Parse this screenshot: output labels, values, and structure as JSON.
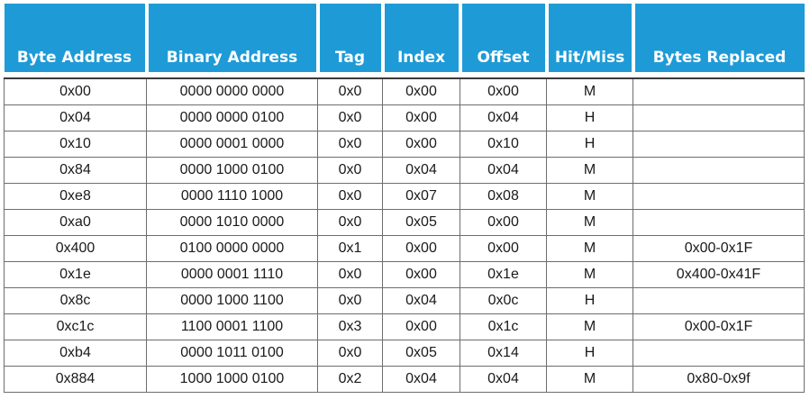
{
  "table": {
    "headers": [
      "Byte Address",
      "Binary Address",
      "Tag",
      "Index",
      "Offset",
      "Hit/Miss",
      "Bytes Replaced"
    ],
    "rows": [
      [
        "0x00",
        "0000 0000 0000",
        "0x0",
        "0x00",
        "0x00",
        "M",
        ""
      ],
      [
        "0x04",
        "0000 0000 0100",
        "0x0",
        "0x00",
        "0x04",
        "H",
        ""
      ],
      [
        "0x10",
        "0000 0001 0000",
        "0x0",
        "0x00",
        "0x10",
        "H",
        ""
      ],
      [
        "0x84",
        "0000 1000 0100",
        "0x0",
        "0x04",
        "0x04",
        "M",
        ""
      ],
      [
        "0xe8",
        "0000 1110 1000",
        "0x0",
        "0x07",
        "0x08",
        "M",
        ""
      ],
      [
        "0xa0",
        "0000 1010 0000",
        "0x0",
        "0x05",
        "0x00",
        "M",
        ""
      ],
      [
        "0x400",
        "0100 0000 0000",
        "0x1",
        "0x00",
        "0x00",
        "M",
        "0x00-0x1F"
      ],
      [
        "0x1e",
        "0000 0001 1110",
        "0x0",
        "0x00",
        "0x1e",
        "M",
        "0x400-0x41F"
      ],
      [
        "0x8c",
        "0000 1000 1100",
        "0x0",
        "0x04",
        "0x0c",
        "H",
        ""
      ],
      [
        "0xc1c",
        "1100 0001 1100",
        "0x3",
        "0x00",
        "0x1c",
        "M",
        "0x00-0x1F"
      ],
      [
        "0xb4",
        "0000 1011 0100",
        "0x0",
        "0x05",
        "0x14",
        "H",
        ""
      ],
      [
        "0x884",
        "1000 1000 0100",
        "0x2",
        "0x04",
        "0x04",
        "M",
        "0x80-0x9f"
      ]
    ]
  },
  "colors": {
    "header_background": "#1e9bd7",
    "header_text": "#ffffff",
    "cell_border": "#6d6d6d"
  }
}
